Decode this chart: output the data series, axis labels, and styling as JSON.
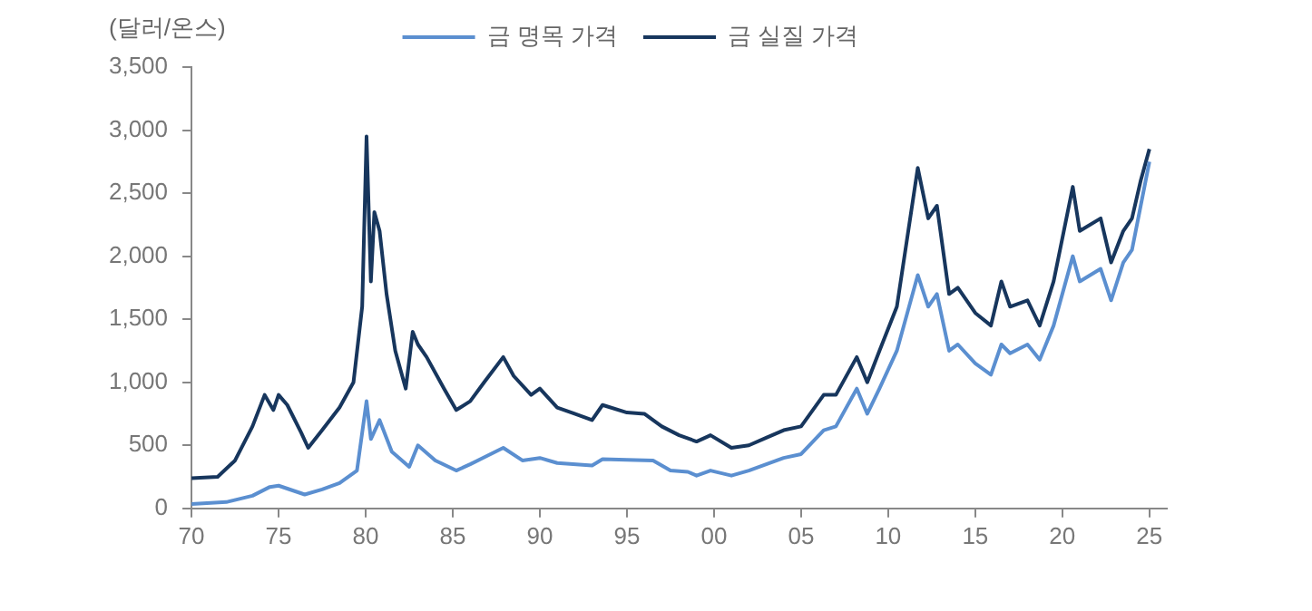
{
  "chart_data": {
    "type": "line",
    "ylabel": "(달러/온스)",
    "legend": "top",
    "grid": false,
    "marker": "none",
    "line_style": "solid",
    "xlim": [
      1970,
      2026
    ],
    "xticks": [
      {
        "value": 1970,
        "label": "70"
      },
      {
        "value": 1975,
        "label": "75"
      },
      {
        "value": 1980,
        "label": "80"
      },
      {
        "value": 1985,
        "label": "85"
      },
      {
        "value": 1990,
        "label": "90"
      },
      {
        "value": 1995,
        "label": "95"
      },
      {
        "value": 2000,
        "label": "00"
      },
      {
        "value": 2005,
        "label": "05"
      },
      {
        "value": 2010,
        "label": "10"
      },
      {
        "value": 2015,
        "label": "15"
      },
      {
        "value": 2020,
        "label": "20"
      },
      {
        "value": 2025,
        "label": "25"
      }
    ],
    "ylim": [
      0,
      3500
    ],
    "yticks": [
      0,
      500,
      {
        "value": 1000,
        "label": "1,000"
      },
      {
        "value": 1500,
        "label": "1,500"
      },
      {
        "value": 2000,
        "label": "2,000"
      },
      {
        "value": 2500,
        "label": "2,500"
      },
      {
        "value": 3000,
        "label": "3,000"
      },
      {
        "value": 3500,
        "label": "3,500"
      }
    ],
    "series": [
      {
        "name": "금 명목 가격",
        "color": "#5b8fd0",
        "x": [
          1970,
          1972,
          1973.5,
          1974.5,
          1975,
          1976.5,
          1977.5,
          1978.5,
          1979.5,
          1980.05,
          1980.3,
          1980.8,
          1981.5,
          1982.5,
          1983,
          1984,
          1985.2,
          1986,
          1987.9,
          1989,
          1990,
          1991,
          1993,
          1993.6,
          1995,
          1996.5,
          1997.5,
          1998.5,
          1999,
          1999.8,
          2001,
          2002,
          2003,
          2004,
          2005,
          2006.3,
          2007,
          2008.2,
          2008.8,
          2009.5,
          2010.5,
          2011.7,
          2012.3,
          2012.8,
          2013.5,
          2014,
          2015,
          2015.9,
          2016.5,
          2017,
          2018,
          2018.7,
          2019.5,
          2020.6,
          2021,
          2022.2,
          2022.8,
          2023.5,
          2024,
          2024.5,
          2025
        ],
        "values": [
          35,
          50,
          100,
          170,
          180,
          110,
          150,
          200,
          300,
          850,
          550,
          700,
          450,
          330,
          500,
          380,
          300,
          350,
          480,
          380,
          400,
          360,
          340,
          390,
          385,
          380,
          300,
          290,
          260,
          300,
          260,
          300,
          350,
          400,
          430,
          620,
          650,
          950,
          750,
          950,
          1250,
          1850,
          1600,
          1700,
          1250,
          1300,
          1150,
          1060,
          1300,
          1230,
          1300,
          1180,
          1450,
          2000,
          1800,
          1900,
          1650,
          1950,
          2050,
          2400,
          2750
        ]
      },
      {
        "name": "금 실질 가격",
        "color": "#17365d",
        "x": [
          1970,
          1971.5,
          1972.5,
          1973.5,
          1974.2,
          1974.7,
          1975,
          1975.5,
          1976.3,
          1976.7,
          1977.5,
          1978.5,
          1979.3,
          1979.8,
          1980.05,
          1980.3,
          1980.5,
          1980.8,
          1981.2,
          1981.7,
          1982.3,
          1982.7,
          1983,
          1983.5,
          1984.5,
          1985.2,
          1986,
          1986.8,
          1987.9,
          1988.5,
          1989.5,
          1990,
          1991,
          1992,
          1993,
          1993.6,
          1995,
          1996,
          1997,
          1998,
          1999,
          1999.8,
          2001,
          2002,
          2003,
          2004,
          2005,
          2006.3,
          2007,
          2008.2,
          2008.8,
          2009.5,
          2010.5,
          2011.7,
          2012.3,
          2012.8,
          2013.5,
          2014,
          2015,
          2015.9,
          2016.5,
          2017,
          2018,
          2018.7,
          2019.5,
          2020.6,
          2021,
          2022.2,
          2022.8,
          2023.5,
          2024,
          2024.5,
          2025
        ],
        "values": [
          240,
          250,
          380,
          650,
          900,
          780,
          900,
          820,
          600,
          480,
          620,
          800,
          1000,
          1600,
          2950,
          1800,
          2350,
          2200,
          1700,
          1250,
          950,
          1400,
          1300,
          1200,
          950,
          780,
          850,
          1000,
          1200,
          1050,
          900,
          950,
          800,
          750,
          700,
          820,
          760,
          750,
          650,
          580,
          530,
          580,
          480,
          500,
          560,
          620,
          650,
          900,
          900,
          1200,
          1000,
          1250,
          1600,
          2700,
          2300,
          2400,
          1700,
          1750,
          1550,
          1450,
          1800,
          1600,
          1650,
          1450,
          1800,
          2550,
          2200,
          2300,
          1950,
          2200,
          2300,
          2600,
          2850
        ]
      }
    ]
  }
}
